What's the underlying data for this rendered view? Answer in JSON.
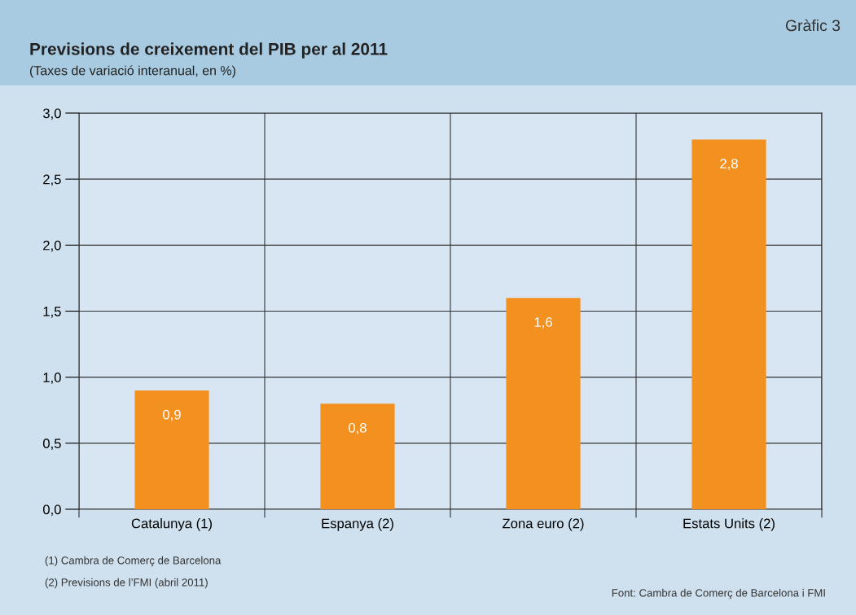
{
  "chart_data": {
    "type": "bar",
    "title": "Previsions de creixement del PIB per al 2011",
    "subtitle": "(Taxes de variació interanual, en %)",
    "categories": [
      "Catalunya (1)",
      "Espanya (2)",
      "Zona euro (2)",
      "Estats Units (2)"
    ],
    "values": [
      0.9,
      0.8,
      1.6,
      2.8
    ],
    "color": "#f39120",
    "value_labels": [
      "0,9",
      "0,8",
      "1,6",
      "2,8"
    ],
    "ylim": [
      0,
      3
    ],
    "yticks": [
      {
        "value": 0,
        "label": "0,0"
      },
      {
        "value": 0.5,
        "label": "0,5"
      },
      {
        "value": 1,
        "label": "1,0"
      },
      {
        "value": 1.5,
        "label": "1,5"
      },
      {
        "value": 2,
        "label": "2,0"
      },
      {
        "value": 2.5,
        "label": "2,5"
      },
      {
        "value": 3,
        "label": "3,0"
      }
    ],
    "grid": "y",
    "annotations": [
      "Gràfic 3",
      "(1) Cambra de Comerç de Barcelona",
      "(2) Previsions de l’FMI (abril 2011)",
      "Font: Cambra de Comerç de Barcelona i FMI"
    ]
  }
}
